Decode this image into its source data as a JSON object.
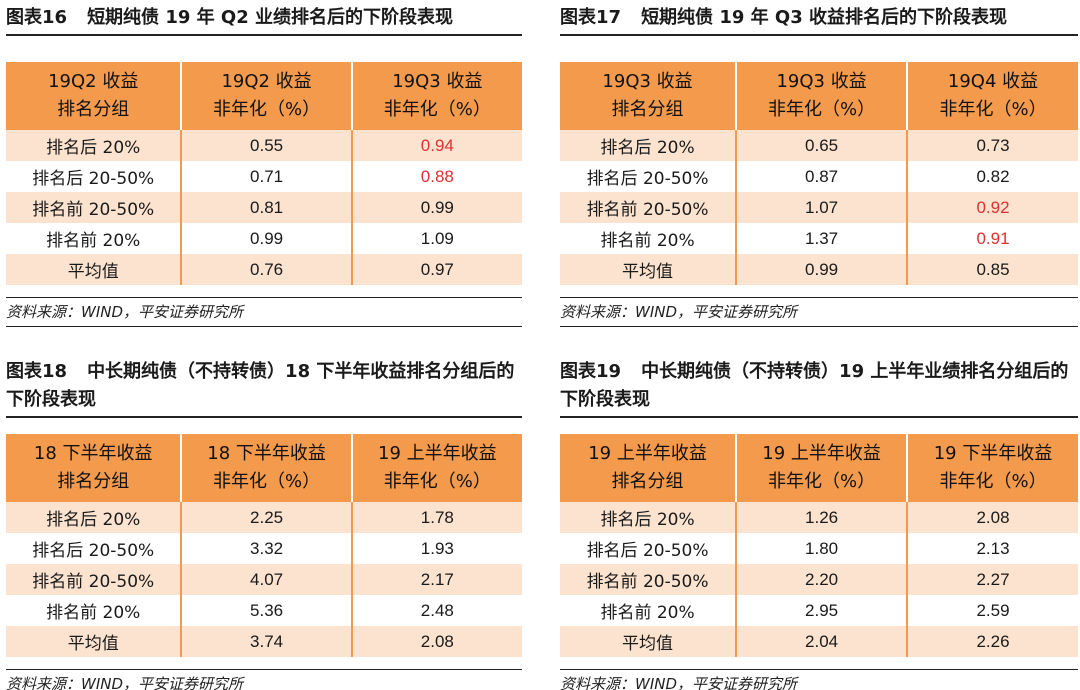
{
  "panels": [
    {
      "title_num": "图表16",
      "title": "短期纯债 19 年 Q2 业绩排名后的下阶段表现",
      "headers": [
        "19Q2 收益\n排名分组",
        "19Q2 收益\n非年化（%）",
        "19Q3 收益\n非年化（%）"
      ],
      "rows": [
        {
          "group": "排名后 20%",
          "v1": "0.55",
          "v2": "0.94",
          "v1_red": false,
          "v2_red": true
        },
        {
          "group": "排名后 20-50%",
          "v1": "0.71",
          "v2": "0.88",
          "v1_red": false,
          "v2_red": true
        },
        {
          "group": "排名前 20-50%",
          "v1": "0.81",
          "v2": "0.99",
          "v1_red": false,
          "v2_red": false
        },
        {
          "group": "排名前 20%",
          "v1": "0.99",
          "v2": "1.09",
          "v1_red": false,
          "v2_red": false
        },
        {
          "group": "平均值",
          "v1": "0.76",
          "v2": "0.97",
          "v1_red": false,
          "v2_red": false
        }
      ],
      "source": "资料来源：WIND，平安证券研究所"
    },
    {
      "title_num": "图表17",
      "title": "短期纯债 19 年 Q3 收益排名后的下阶段表现",
      "headers": [
        "19Q3 收益\n排名分组",
        "19Q3 收益\n非年化（%）",
        "19Q4 收益\n非年化（%）"
      ],
      "rows": [
        {
          "group": "排名后 20%",
          "v1": "0.65",
          "v2": "0.73",
          "v1_red": false,
          "v2_red": false
        },
        {
          "group": "排名后 20-50%",
          "v1": "0.87",
          "v2": "0.82",
          "v1_red": false,
          "v2_red": false
        },
        {
          "group": "排名前 20-50%",
          "v1": "1.07",
          "v2": "0.92",
          "v1_red": false,
          "v2_red": true
        },
        {
          "group": "排名前 20%",
          "v1": "1.37",
          "v2": "0.91",
          "v1_red": false,
          "v2_red": true
        },
        {
          "group": "平均值",
          "v1": "0.99",
          "v2": "0.85",
          "v1_red": false,
          "v2_red": false
        }
      ],
      "source": "资料来源：WIND，平安证券研究所"
    },
    {
      "title_num": "图表18",
      "title": "中长期纯债（不持转债）18 下半年收益排名分组后的下阶段表现",
      "headers": [
        "18 下半年收益\n排名分组",
        "18 下半年收益\n非年化（%）",
        "19 上半年收益\n非年化（%）"
      ],
      "rows": [
        {
          "group": "排名后 20%",
          "v1": "2.25",
          "v2": "1.78",
          "v1_red": false,
          "v2_red": false
        },
        {
          "group": "排名后 20-50%",
          "v1": "3.32",
          "v2": "1.93",
          "v1_red": false,
          "v2_red": false
        },
        {
          "group": "排名前 20-50%",
          "v1": "4.07",
          "v2": "2.17",
          "v1_red": false,
          "v2_red": false
        },
        {
          "group": "排名前 20%",
          "v1": "5.36",
          "v2": "2.48",
          "v1_red": false,
          "v2_red": false
        },
        {
          "group": "平均值",
          "v1": "3.74",
          "v2": "2.08",
          "v1_red": false,
          "v2_red": false
        }
      ],
      "source": "资料来源：WIND，平安证券研究所"
    },
    {
      "title_num": "图表19",
      "title": "中长期纯债（不持转债）19 上半年业绩排名分组后的下阶段表现",
      "headers": [
        "19 上半年收益\n排名分组",
        "19 上半年收益\n非年化（%）",
        "19 下半年收益\n非年化（%）"
      ],
      "rows": [
        {
          "group": "排名后 20%",
          "v1": "1.26",
          "v2": "2.08",
          "v1_red": false,
          "v2_red": false
        },
        {
          "group": "排名后 20-50%",
          "v1": "1.80",
          "v2": "2.13",
          "v1_red": false,
          "v2_red": false
        },
        {
          "group": "排名前 20-50%",
          "v1": "2.20",
          "v2": "2.27",
          "v1_red": false,
          "v2_red": false
        },
        {
          "group": "排名前 20%",
          "v1": "2.95",
          "v2": "2.59",
          "v1_red": false,
          "v2_red": false
        },
        {
          "group": "平均值",
          "v1": "2.04",
          "v2": "2.26",
          "v1_red": false,
          "v2_red": false
        }
      ],
      "source": "资料来源：WIND，平安证券研究所"
    }
  ],
  "colors": {
    "header_bg": "#f39a4d",
    "row_alt_bg": "#fbe3cf",
    "highlight_red": "#e03030"
  }
}
